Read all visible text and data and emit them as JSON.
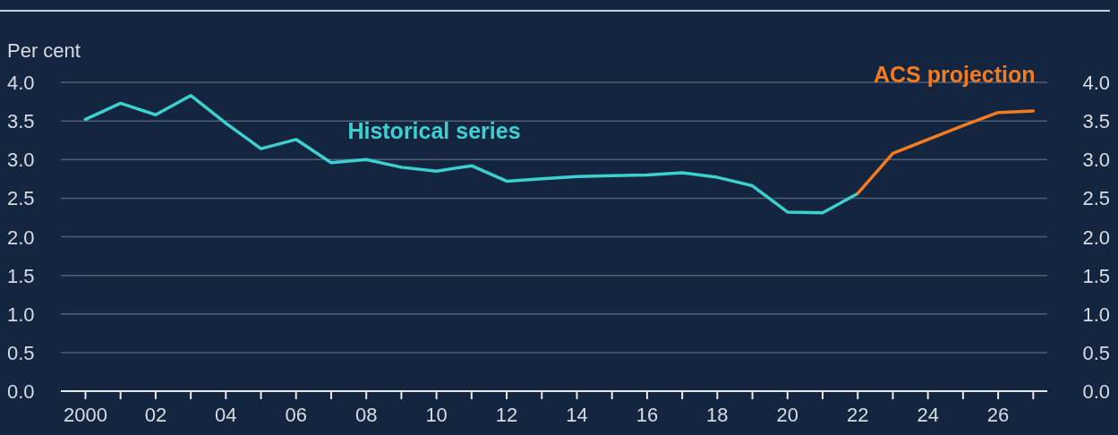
{
  "chart_data": {
    "type": "line",
    "ylabel": "Per cent",
    "xlim": [
      1999.3,
      2027.4
    ],
    "xticks": [
      {
        "value": 2000,
        "label": "2000"
      },
      {
        "value": 2001,
        "label": null
      },
      {
        "value": 2002,
        "label": "02"
      },
      {
        "value": 2003,
        "label": null
      },
      {
        "value": 2004,
        "label": "04"
      },
      {
        "value": 2005,
        "label": null
      },
      {
        "value": 2006,
        "label": "06"
      },
      {
        "value": 2007,
        "label": null
      },
      {
        "value": 2008,
        "label": "08"
      },
      {
        "value": 2009,
        "label": null
      },
      {
        "value": 2010,
        "label": "10"
      },
      {
        "value": 2011,
        "label": null
      },
      {
        "value": 2012,
        "label": "12"
      },
      {
        "value": 2013,
        "label": null
      },
      {
        "value": 2014,
        "label": "14"
      },
      {
        "value": 2015,
        "label": null
      },
      {
        "value": 2016,
        "label": "16"
      },
      {
        "value": 2017,
        "label": null
      },
      {
        "value": 2018,
        "label": "18"
      },
      {
        "value": 2019,
        "label": null
      },
      {
        "value": 2020,
        "label": "20"
      },
      {
        "value": 2021,
        "label": null
      },
      {
        "value": 2022,
        "label": "22"
      },
      {
        "value": 2023,
        "label": null
      },
      {
        "value": 2024,
        "label": "24"
      },
      {
        "value": 2025,
        "label": null
      },
      {
        "value": 2026,
        "label": "26"
      },
      {
        "value": 2027,
        "label": null
      }
    ],
    "ylim": [
      0,
      4
    ],
    "yticks": [
      {
        "value": 0,
        "label": "0.0"
      },
      {
        "value": 0.5,
        "label": "0.5"
      },
      {
        "value": 1,
        "label": "1.0"
      },
      {
        "value": 1.5,
        "label": "1.5"
      },
      {
        "value": 2,
        "label": "2.0"
      },
      {
        "value": 2.5,
        "label": "2.5"
      },
      {
        "value": 3,
        "label": "3.0"
      },
      {
        "value": 3.5,
        "label": "3.5"
      },
      {
        "value": 4,
        "label": "4.0"
      }
    ],
    "y2lim": [
      0,
      4
    ],
    "y2ticks": [
      {
        "value": 0,
        "label": "0.0"
      },
      {
        "value": 0.5,
        "label": "0.5"
      },
      {
        "value": 1,
        "label": "1.0"
      },
      {
        "value": 1.5,
        "label": "1.5"
      },
      {
        "value": 2,
        "label": "2.0"
      },
      {
        "value": 2.5,
        "label": "2.5"
      },
      {
        "value": 3,
        "label": "3.0"
      },
      {
        "value": 3.5,
        "label": "3.5"
      },
      {
        "value": 4,
        "label": "4.0"
      }
    ],
    "grid": "y",
    "legend": false,
    "series": [
      {
        "name": "Historical series",
        "color": "#3dd0d0",
        "x": [
          2000,
          2001,
          2002,
          2003,
          2004,
          2005,
          2006,
          2007,
          2008,
          2009,
          2010,
          2011,
          2012,
          2013,
          2014,
          2015,
          2016,
          2017,
          2018,
          2019,
          2020,
          2021,
          2022
        ],
        "values": [
          3.52,
          3.73,
          3.58,
          3.83,
          3.47,
          3.14,
          3.26,
          2.96,
          3.0,
          2.9,
          2.85,
          2.92,
          2.72,
          2.75,
          2.78,
          2.79,
          2.8,
          2.83,
          2.77,
          2.66,
          2.32,
          2.31,
          2.56
        ]
      },
      {
        "name": "ACS projection",
        "color": "#f47b20",
        "x": [
          2022,
          2023,
          2024,
          2025,
          2026,
          2027
        ],
        "values": [
          2.56,
          3.08,
          3.26,
          3.44,
          3.61,
          3.63
        ]
      }
    ]
  }
}
